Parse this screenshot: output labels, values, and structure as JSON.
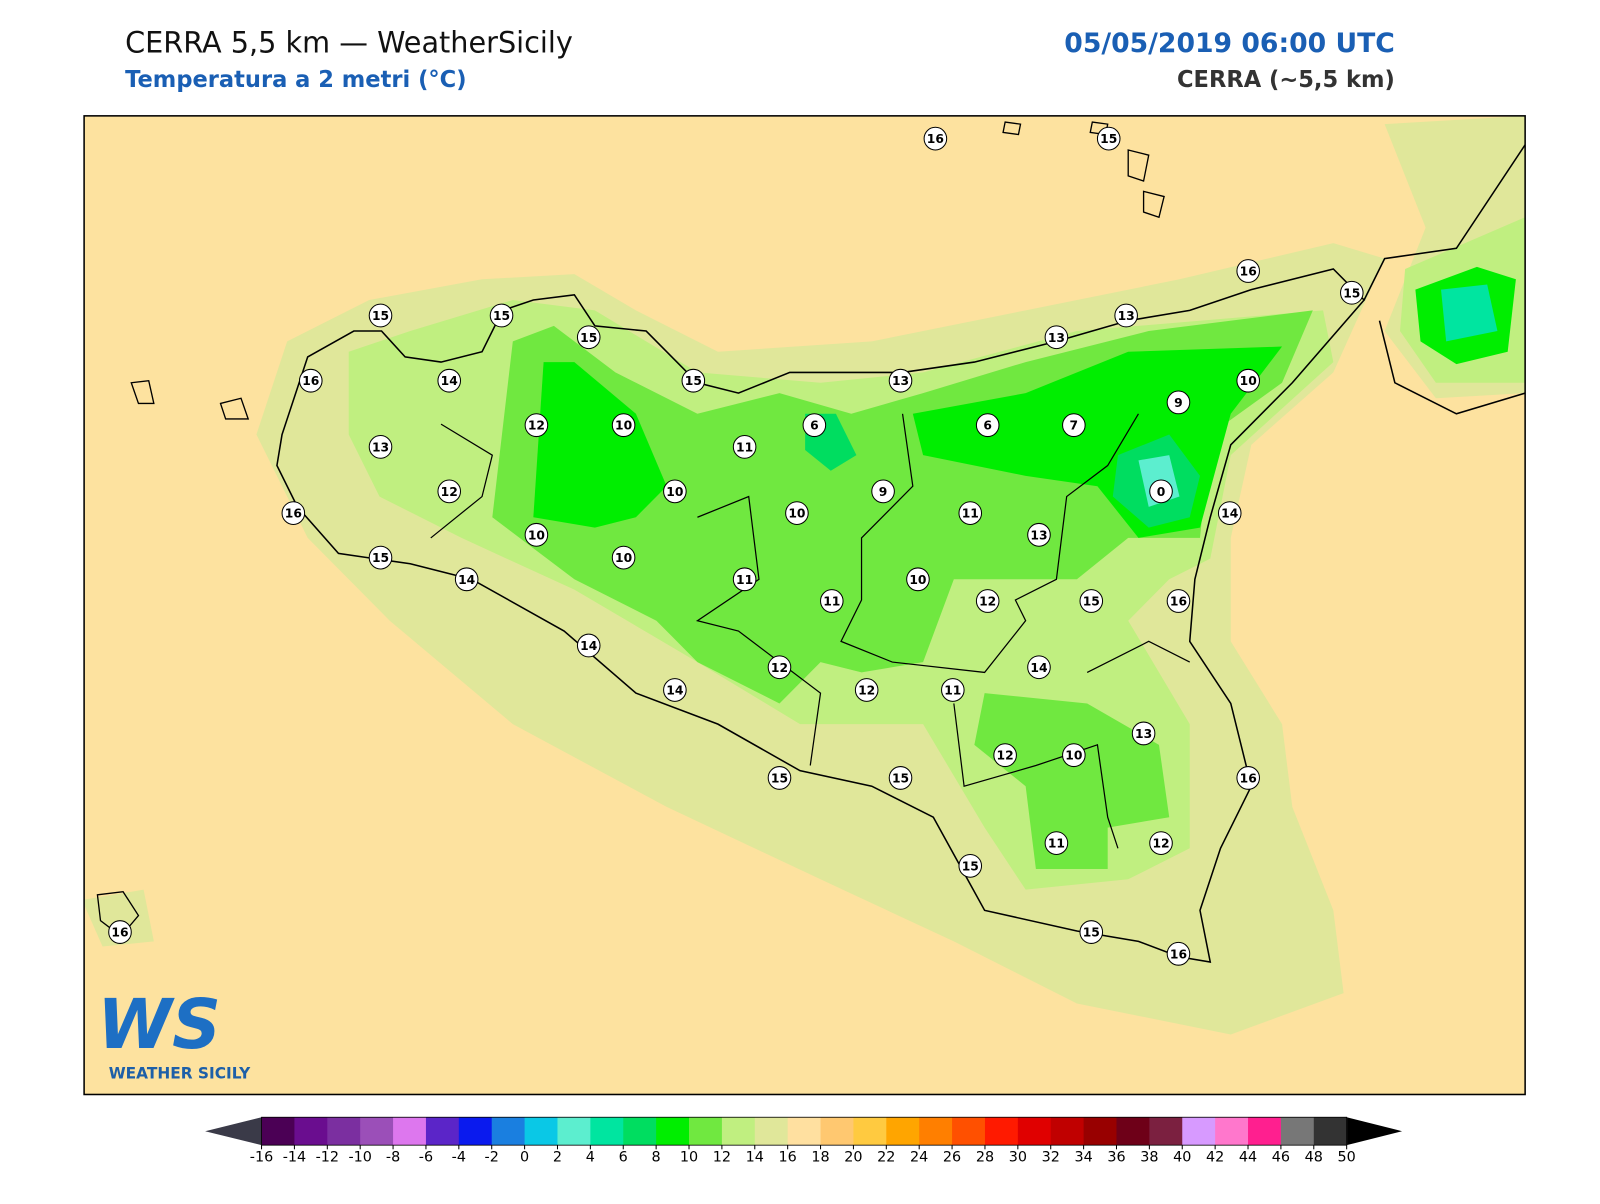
{
  "header": {
    "title": "CERRA 5,5 km — WeatherSicily",
    "subtitle": "Temperatura a 2 metri (°C)",
    "date": "05/05/2019 06:00 UTC",
    "model": "CERRA (~5,5 km)"
  },
  "stations": {
    "values": [
      16,
      15,
      16,
      15,
      15,
      15,
      15,
      13,
      13,
      16,
      14,
      15,
      13,
      10,
      9,
      12,
      10,
      6,
      6,
      7,
      13,
      11,
      12,
      10,
      9,
      0,
      16,
      10,
      11,
      14,
      10,
      13,
      15,
      10,
      14,
      11,
      10,
      11,
      12,
      15,
      16,
      14,
      14,
      12,
      14,
      12,
      11,
      13,
      12,
      10,
      15,
      15,
      16,
      11,
      12,
      15,
      16,
      15,
      16
    ]
  },
  "colorbar": {
    "ticks": [
      -16,
      -14,
      -12,
      -10,
      -8,
      -6,
      -4,
      -2,
      0,
      2,
      4,
      6,
      8,
      10,
      12,
      14,
      16,
      18,
      20,
      22,
      24,
      26,
      28,
      30,
      32,
      34,
      36,
      38,
      40,
      42,
      44,
      46,
      48,
      50
    ],
    "colors": [
      "#4b0055",
      "#6a0d8f",
      "#7b2fa0",
      "#9b4fb8",
      "#dd77ee",
      "#5b25c8",
      "#0a1aee",
      "#1a7fe0",
      "#0ac8e6",
      "#5ceecf",
      "#00e5a0",
      "#00dd60",
      "#00ee00",
      "#70e840",
      "#c0ef80",
      "#e0e79a",
      "#ffe0a0",
      "#ffc870",
      "#ffca40",
      "#ffa500",
      "#ff7f00",
      "#ff5000",
      "#ff1a00",
      "#e00000",
      "#c00000",
      "#980000",
      "#6e0018",
      "#7b2040",
      "#d79aff",
      "#ff77cc",
      "#ff1f8f",
      "#777777",
      "#333333"
    ],
    "under_color": "#3a3a48",
    "over_color": "#000000"
  },
  "logo": {
    "mark": "WS",
    "text": "WEATHER SICILY"
  }
}
